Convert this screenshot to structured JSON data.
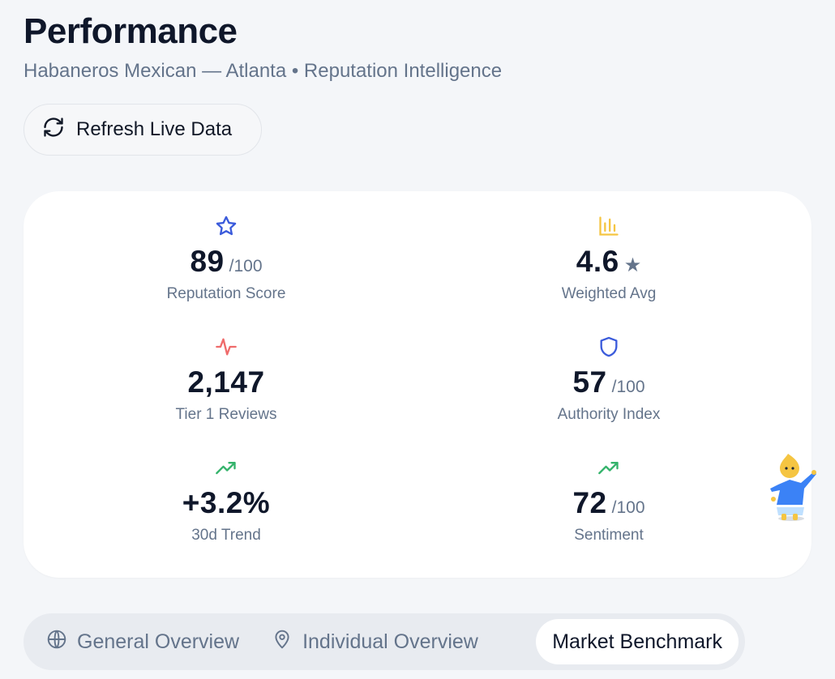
{
  "header": {
    "title": "Performance",
    "subtitle": "Habaneros Mexican — Atlanta • Reputation Intelligence"
  },
  "refresh_button": {
    "label": "Refresh Live Data",
    "icon": "refresh-icon"
  },
  "stats": [
    {
      "id": "reputation-score",
      "value": "89",
      "suffix": "/100",
      "label": "Reputation Score",
      "icon": "star-icon",
      "icon_color": "#3b5bdb"
    },
    {
      "id": "weighted-avg",
      "value": "4.6",
      "suffix": "★",
      "label": "Weighted Avg",
      "icon": "bar-chart-icon",
      "icon_color": "#f5c542"
    },
    {
      "id": "tier1-reviews",
      "value": "2,147",
      "suffix": "",
      "label": "Tier 1 Reviews",
      "icon": "activity-icon",
      "icon_color": "#ef6b6b"
    },
    {
      "id": "authority-index",
      "value": "57",
      "suffix": "/100",
      "label": "Authority Index",
      "icon": "shield-icon",
      "icon_color": "#3b5bdb"
    },
    {
      "id": "30d-trend",
      "value": "+3.2%",
      "suffix": "",
      "label": "30d Trend",
      "icon": "trending-up-icon",
      "icon_color": "#34b36b"
    },
    {
      "id": "sentiment",
      "value": "72",
      "suffix": "/100",
      "label": "Sentiment",
      "icon": "trending-up-icon",
      "icon_color": "#34b36b"
    }
  ],
  "tabs": [
    {
      "label": "General Overview",
      "icon": "globe-icon",
      "active": false
    },
    {
      "label": "Individual Overview",
      "icon": "map-pin-icon",
      "active": false
    },
    {
      "label": "Market Benchmark",
      "icon": "",
      "active": true
    }
  ],
  "colors": {
    "background": "#f4f6f9",
    "card": "#ffffff",
    "text_primary": "#0f172a",
    "text_muted": "#64748b"
  }
}
